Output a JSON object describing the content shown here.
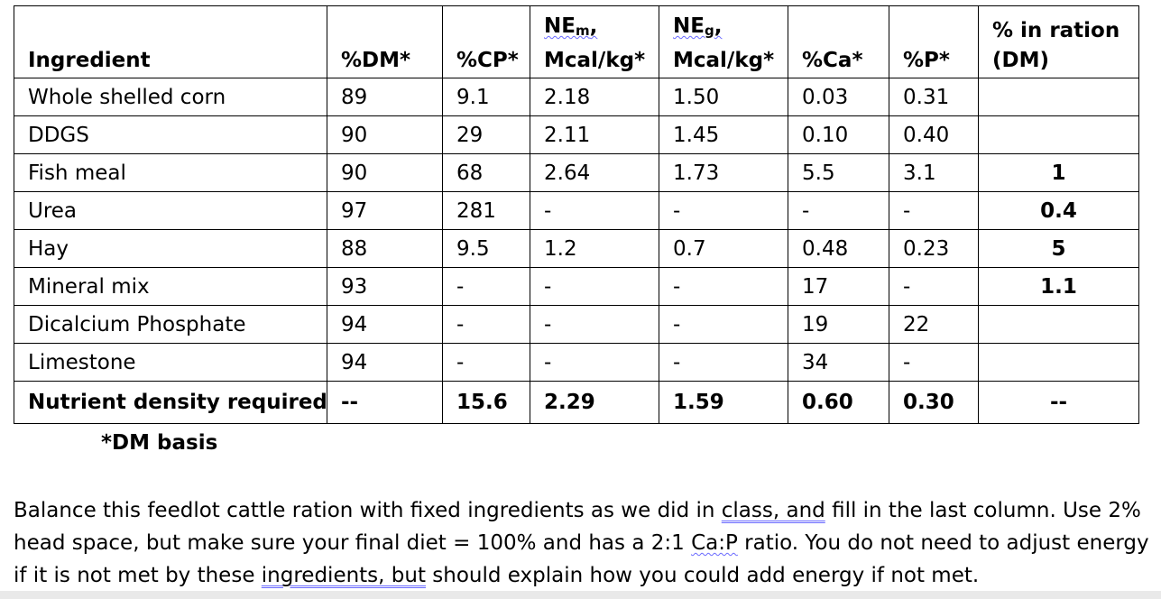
{
  "table": {
    "headers": {
      "ingredient": "Ingredient",
      "dm": "%DM*",
      "cp": "%CP*",
      "nem_prefix": "NE",
      "nem_sub": "m",
      "nem_suffix": ",",
      "nem_units": "Mcal/kg*",
      "neg_prefix": "NE",
      "neg_sub": "g",
      "neg_suffix": ",",
      "neg_units": "Mcal/kg*",
      "ca": "%Ca*",
      "p": "%P*",
      "ration_line1": "% in ration",
      "ration_line2": "(DM)"
    },
    "rows": [
      {
        "ingredient": "Whole shelled corn",
        "dm": "89",
        "cp": "9.1",
        "nem": "2.18",
        "neg": "1.50",
        "ca": "0.03",
        "p": "0.31",
        "ration": ""
      },
      {
        "ingredient": "DDGS",
        "dm": "90",
        "cp": "29",
        "nem": "2.11",
        "neg": "1.45",
        "ca": "0.10",
        "p": "0.40",
        "ration": ""
      },
      {
        "ingredient": "Fish meal",
        "dm": "90",
        "cp": "68",
        "nem": "2.64",
        "neg": "1.73",
        "ca": "5.5",
        "p": "3.1",
        "ration": "1"
      },
      {
        "ingredient": "Urea",
        "dm": "97",
        "cp": "281",
        "nem": "-",
        "neg": "-",
        "ca": "-",
        "p": "-",
        "ration": "0.4"
      },
      {
        "ingredient": "Hay",
        "dm": "88",
        "cp": "9.5",
        "nem": "1.2",
        "neg": "0.7",
        "ca": "0.48",
        "p": "0.23",
        "ration": "5"
      },
      {
        "ingredient": "Mineral mix",
        "dm": "93",
        "cp": "-",
        "nem": "-",
        "neg": "-",
        "ca": "17",
        "p": "-",
        "ration": "1.1"
      },
      {
        "ingredient": "Dicalcium Phosphate",
        "dm": "94",
        "cp": "-",
        "nem": "-",
        "neg": "-",
        "ca": "19",
        "p": "22",
        "ration": ""
      },
      {
        "ingredient": "Limestone",
        "dm": "94",
        "cp": "-",
        "nem": "-",
        "neg": "-",
        "ca": "34",
        "p": "-",
        "ration": ""
      }
    ],
    "required": {
      "ingredient": "Nutrient density required",
      "dm": "--",
      "cp": "15.6",
      "nem": "2.29",
      "neg": "1.59",
      "ca": "0.60",
      "p": "0.30",
      "ration": "--"
    }
  },
  "footnote": "*DM basis",
  "instructions": {
    "part1": "Balance this feedlot cattle ration with fixed ingredients as we did in ",
    "part2": "class, and",
    "part3": " fill in the last column. Use 2% head space, but make sure your final diet = 100% and has a 2:1 ",
    "part4": "Ca:P",
    "part5": " ratio. You do not need to adjust energy if it is not met by these ",
    "part6": "ingredients, but",
    "part7": " should explain how you could add energy if not met."
  }
}
